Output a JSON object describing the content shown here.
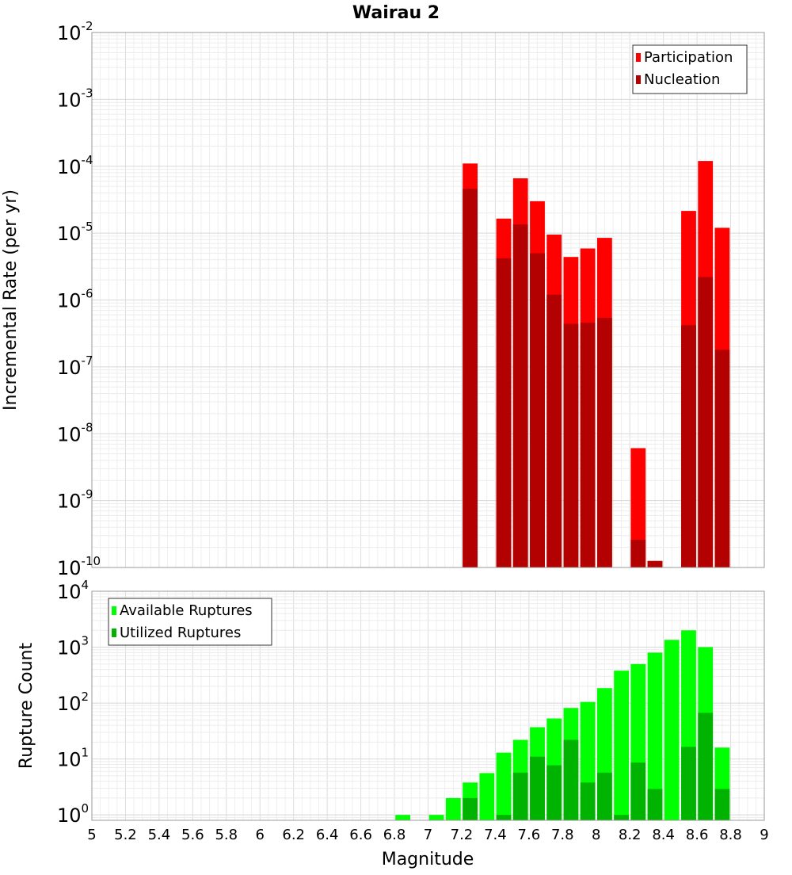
{
  "chart_data": {
    "title": "Wairau 2",
    "type": "bar",
    "x_scale": "linear",
    "y_scale": "log",
    "grid": true,
    "bar_width": 0.1,
    "panels": [
      {
        "id": "rate",
        "ylabel": "Incremental Rate (per yr)",
        "ylim": [
          1e-10,
          0.01
        ],
        "y_tick_exponents": [
          -10,
          -9,
          -8,
          -7,
          -6,
          -5,
          -4,
          -3,
          -2
        ],
        "legend_position": "top-right",
        "series": [
          {
            "name": "Participation",
            "color": "#ff0000",
            "points": [
              [
                7.25,
                0.00011
              ],
              [
                7.45,
                1.65e-05
              ],
              [
                7.55,
                6.6e-05
              ],
              [
                7.65,
                3e-05
              ],
              [
                7.75,
                9.5e-06
              ],
              [
                7.85,
                4.4e-06
              ],
              [
                7.95,
                5.9e-06
              ],
              [
                8.05,
                8.5e-06
              ],
              [
                8.25,
                6.1e-09
              ],
              [
                8.35,
                1.25e-10
              ],
              [
                8.55,
                2.15e-05
              ],
              [
                8.65,
                0.00012
              ],
              [
                8.75,
                1.2e-05
              ]
            ]
          },
          {
            "name": "Nucleation",
            "color": "#b30000",
            "points": [
              [
                7.25,
                4.6e-05
              ],
              [
                7.45,
                4.2e-06
              ],
              [
                7.55,
                1.35e-05
              ],
              [
                7.65,
                5e-06
              ],
              [
                7.75,
                1.2e-06
              ],
              [
                7.85,
                4.4e-07
              ],
              [
                7.95,
                4.6e-07
              ],
              [
                8.05,
                5.4e-07
              ],
              [
                8.25,
                2.6e-10
              ],
              [
                8.35,
                1.25e-10
              ],
              [
                8.55,
                4.2e-07
              ],
              [
                8.65,
                2.2e-06
              ],
              [
                8.75,
                1.8e-07
              ]
            ]
          }
        ]
      },
      {
        "id": "count",
        "ylabel": "Rupture Count",
        "ylim": [
          0.8,
          10000
        ],
        "y_tick_exponents": [
          0,
          1,
          2,
          3,
          4
        ],
        "legend_position": "top-left",
        "series": [
          {
            "name": "Available Ruptures",
            "color": "#00ff00",
            "points": [
              [
                6.85,
                1
              ],
              [
                7.05,
                1
              ],
              [
                7.15,
                2
              ],
              [
                7.25,
                3.8
              ],
              [
                7.35,
                5.6
              ],
              [
                7.45,
                13
              ],
              [
                7.55,
                22
              ],
              [
                7.65,
                37
              ],
              [
                7.75,
                53
              ],
              [
                7.85,
                82
              ],
              [
                7.95,
                105
              ],
              [
                8.05,
                185
              ],
              [
                8.15,
                380
              ],
              [
                8.25,
                500
              ],
              [
                8.35,
                800
              ],
              [
                8.45,
                1350
              ],
              [
                8.55,
                2000
              ],
              [
                8.65,
                1000
              ],
              [
                8.75,
                16
              ]
            ]
          },
          {
            "name": "Utilized Ruptures",
            "color": "#00b300",
            "points": [
              [
                7.25,
                2
              ],
              [
                7.45,
                1
              ],
              [
                7.55,
                5.7
              ],
              [
                7.65,
                11
              ],
              [
                7.75,
                7.7
              ],
              [
                7.85,
                22
              ],
              [
                7.95,
                3.8
              ],
              [
                8.05,
                5.7
              ],
              [
                8.15,
                1
              ],
              [
                8.25,
                8.6
              ],
              [
                8.35,
                2.9
              ],
              [
                8.55,
                16.5
              ],
              [
                8.65,
                67
              ],
              [
                8.75,
                2.9
              ]
            ]
          }
        ]
      }
    ],
    "x": {
      "label": "Magnitude",
      "range": [
        5,
        9
      ],
      "ticks": [
        "5",
        "5.2",
        "5.4",
        "5.6",
        "5.8",
        "6",
        "6.2",
        "6.4",
        "6.6",
        "6.8",
        "7",
        "7.2",
        "7.4",
        "7.6",
        "7.8",
        "8",
        "8.2",
        "8.4",
        "8.6",
        "8.8",
        "9"
      ]
    }
  }
}
